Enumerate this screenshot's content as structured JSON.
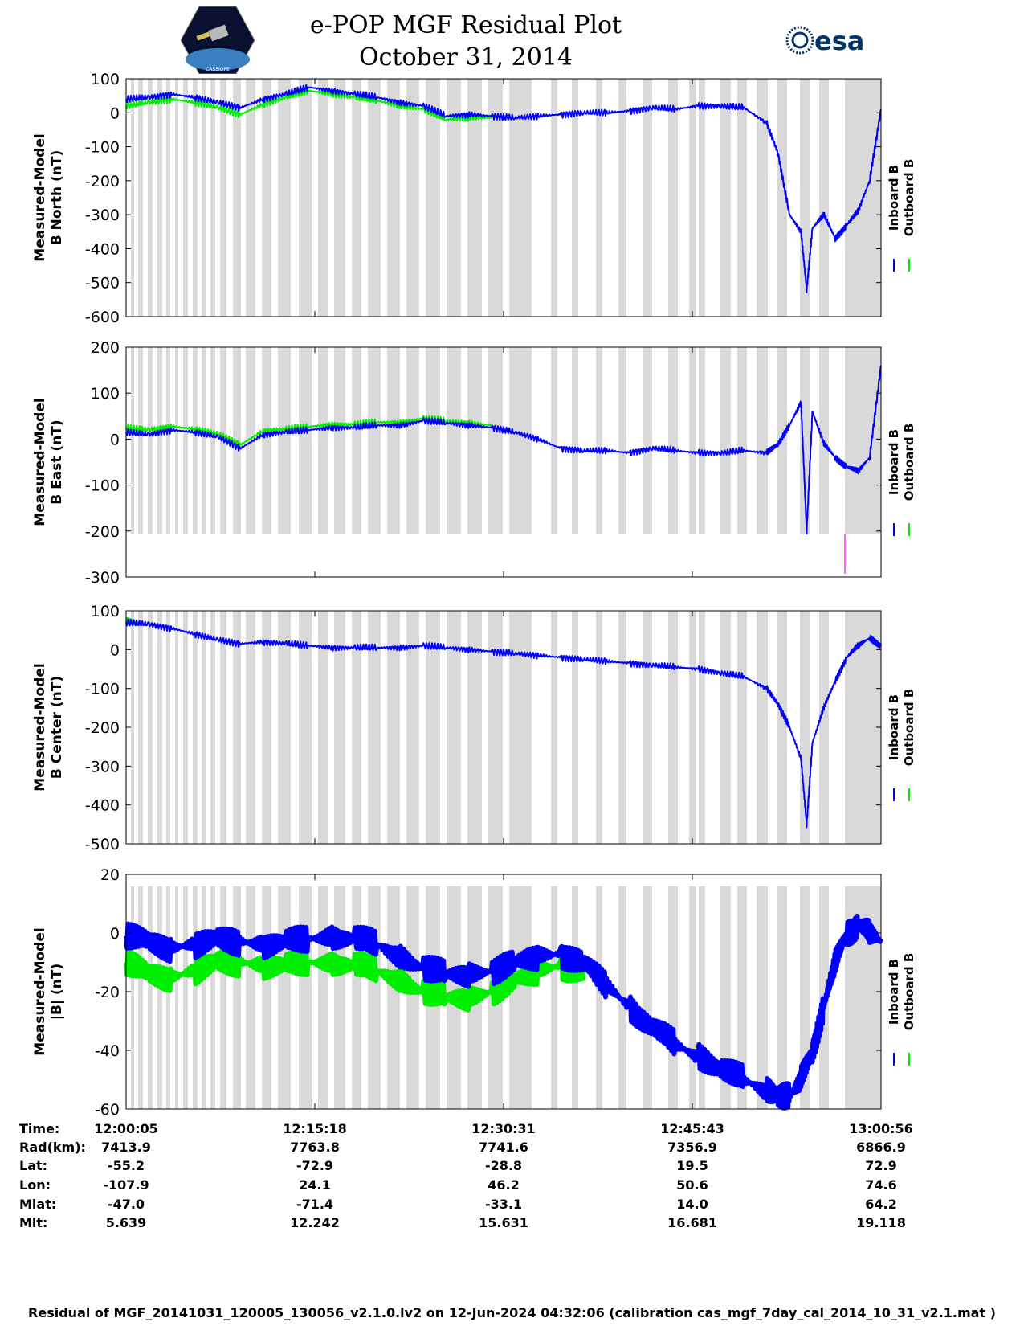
{
  "header": {
    "title": "e-POP MGF Residual Plot",
    "date": "October 31, 2014",
    "left_logo_text": "CASSIOPE",
    "right_logo_text": "esa"
  },
  "legend": {
    "inboard": "Inboard B",
    "outboard": "Outboard B"
  },
  "colors": {
    "inboard": "#0000ff",
    "outboard": "#00ee00",
    "gap": "#d9d9d9",
    "spike": "#ff66ff"
  },
  "chart_data": [
    {
      "type": "line",
      "ylabel_line1": "Measured-Model",
      "ylabel_line2": "B North (nT)",
      "ylim": [
        -600,
        100
      ],
      "yticks": [
        "100",
        "0",
        "-100",
        "-200",
        "-300",
        "-400",
        "-500",
        "-600"
      ],
      "series": [
        {
          "name": "Inboard B",
          "x": [
            0,
            2,
            4,
            6,
            8,
            10,
            12,
            14,
            16,
            18,
            20,
            22,
            24,
            26,
            28,
            30,
            32,
            34,
            36,
            38,
            40,
            42,
            44,
            46,
            48,
            50,
            52,
            54,
            56,
            57,
            58,
            59,
            59.5,
            60,
            61,
            62,
            63,
            64,
            65,
            66
          ],
          "y": [
            40,
            45,
            55,
            45,
            30,
            15,
            40,
            55,
            75,
            65,
            55,
            45,
            30,
            20,
            -10,
            -5,
            -10,
            -15,
            -10,
            -5,
            0,
            0,
            5,
            15,
            10,
            20,
            20,
            15,
            -30,
            -120,
            -300,
            -350,
            -520,
            -340,
            -300,
            -370,
            -330,
            -290,
            -200,
            10
          ]
        },
        {
          "name": "Outboard B",
          "x": [
            0,
            2,
            4,
            6,
            8,
            10,
            12,
            14,
            16,
            18,
            20,
            22,
            24,
            26,
            28,
            30,
            32
          ],
          "y": [
            20,
            30,
            40,
            30,
            15,
            -5,
            25,
            45,
            65,
            55,
            45,
            35,
            20,
            10,
            -20,
            -15,
            -15
          ]
        }
      ]
    },
    {
      "type": "line",
      "ylabel_line1": "Measured-Model",
      "ylabel_line2": "B East (nT)",
      "ylim": [
        -300,
        200
      ],
      "yticks": [
        "200",
        "100",
        "0",
        "-100",
        "-200",
        "-300"
      ],
      "series": [
        {
          "name": "Inboard B",
          "x": [
            0,
            2,
            4,
            6,
            8,
            10,
            12,
            14,
            16,
            18,
            20,
            22,
            24,
            26,
            28,
            30,
            32,
            34,
            36,
            38,
            40,
            42,
            44,
            46,
            48,
            50,
            52,
            54,
            56,
            57,
            58,
            59,
            59.5,
            60,
            61,
            62,
            63,
            64,
            65,
            66
          ],
          "y": [
            15,
            10,
            20,
            15,
            5,
            -20,
            10,
            15,
            20,
            25,
            25,
            30,
            30,
            40,
            35,
            30,
            25,
            15,
            0,
            -20,
            -25,
            -25,
            -30,
            -20,
            -25,
            -30,
            -30,
            -25,
            -30,
            -10,
            30,
            80,
            -200,
            60,
            -10,
            -40,
            -60,
            -70,
            -40,
            160
          ]
        },
        {
          "name": "Outboard B",
          "x": [
            0,
            2,
            4,
            6,
            8,
            10,
            12,
            14,
            16,
            18,
            20,
            22,
            24,
            26,
            28,
            30,
            32
          ],
          "y": [
            25,
            20,
            28,
            22,
            12,
            -12,
            18,
            22,
            27,
            32,
            32,
            37,
            36,
            45,
            40,
            35,
            30
          ]
        }
      ]
    },
    {
      "type": "line",
      "ylabel_line1": "Measured-Model",
      "ylabel_line2": "B Center (nT)",
      "ylim": [
        -500,
        100
      ],
      "yticks": [
        "100",
        "0",
        "-100",
        "-200",
        "-300",
        "-400",
        "-500"
      ],
      "series": [
        {
          "name": "Inboard B",
          "x": [
            0,
            2,
            4,
            6,
            8,
            10,
            12,
            14,
            16,
            18,
            20,
            22,
            24,
            26,
            28,
            30,
            32,
            34,
            36,
            38,
            40,
            42,
            44,
            46,
            48,
            50,
            52,
            54,
            56,
            57,
            58,
            59,
            59.5,
            60,
            61,
            62,
            63,
            64,
            65,
            66
          ],
          "y": [
            70,
            65,
            55,
            40,
            25,
            15,
            20,
            15,
            10,
            5,
            5,
            5,
            5,
            10,
            5,
            0,
            -5,
            -10,
            -15,
            -20,
            -25,
            -30,
            -35,
            -40,
            -45,
            -50,
            -60,
            -70,
            -100,
            -140,
            -200,
            -280,
            -450,
            -240,
            -150,
            -80,
            -20,
            10,
            30,
            10
          ]
        },
        {
          "name": "Outboard B",
          "x": [
            0,
            1
          ],
          "y": [
            75,
            65
          ]
        }
      ]
    },
    {
      "type": "line",
      "ylabel_line1": "Measured-Model",
      "ylabel_line2": "|B| (nT)",
      "ylim": [
        -60,
        20
      ],
      "yticks": [
        "20",
        "0",
        "-20",
        "-40",
        "-60"
      ],
      "series": [
        {
          "name": "Inboard B",
          "x": [
            0,
            2,
            4,
            6,
            8,
            10,
            12,
            14,
            16,
            18,
            20,
            22,
            24,
            26,
            28,
            30,
            32,
            34,
            36,
            38,
            40,
            42,
            44,
            46,
            48,
            50,
            52,
            54,
            56,
            57,
            58,
            59,
            60,
            61,
            62,
            63,
            64,
            65,
            66
          ],
          "y": [
            -1,
            -3,
            -5,
            -4,
            -2,
            -3,
            -4,
            -3,
            -2,
            -1,
            -2,
            -4,
            -8,
            -12,
            -14,
            -14,
            -13,
            -10,
            -8,
            -7,
            -10,
            -18,
            -25,
            -32,
            -38,
            -42,
            -46,
            -50,
            -54,
            -55,
            -56,
            -50,
            -40,
            -25,
            -10,
            0,
            3,
            0,
            -3
          ]
        },
        {
          "name": "Outboard B",
          "x": [
            0,
            2,
            4,
            6,
            8,
            10,
            12,
            14,
            16,
            18,
            20,
            22,
            24,
            26,
            28,
            30,
            32,
            34,
            36,
            38,
            40
          ],
          "y": [
            -10,
            -14,
            -15,
            -13,
            -10,
            -10,
            -11,
            -11,
            -10,
            -10,
            -11,
            -13,
            -16,
            -20,
            -22,
            -22,
            -20,
            -16,
            -13,
            -11,
            -13
          ]
        }
      ]
    }
  ],
  "info_table": {
    "rows": [
      {
        "label": "Time:",
        "values": [
          "12:00:05",
          "12:15:18",
          "12:30:31",
          "12:45:43",
          "13:00:56"
        ]
      },
      {
        "label": "Rad(km):",
        "values": [
          "7413.9",
          "7763.8",
          "7741.6",
          "7356.9",
          "6866.9"
        ]
      },
      {
        "label": "Lat:",
        "values": [
          "-55.2",
          "-72.9",
          "-28.8",
          "19.5",
          "72.9"
        ]
      },
      {
        "label": "Lon:",
        "values": [
          "-107.9",
          "24.1",
          "46.2",
          "50.6",
          "74.6"
        ]
      },
      {
        "label": "Mlat:",
        "values": [
          "-47.0",
          "-71.4",
          "-33.1",
          "14.0",
          "64.2"
        ]
      },
      {
        "label": "Mlt:",
        "values": [
          "5.639",
          "12.242",
          "15.631",
          "16.681",
          "19.118"
        ]
      }
    ]
  },
  "footer": "Residual of MGF_20141031_120005_130056_v2.1.0.lv2 on 12-Jun-2024 04:32:06 (calibration cas_mgf_7day_cal_2014_10_31_v2.1.mat )"
}
